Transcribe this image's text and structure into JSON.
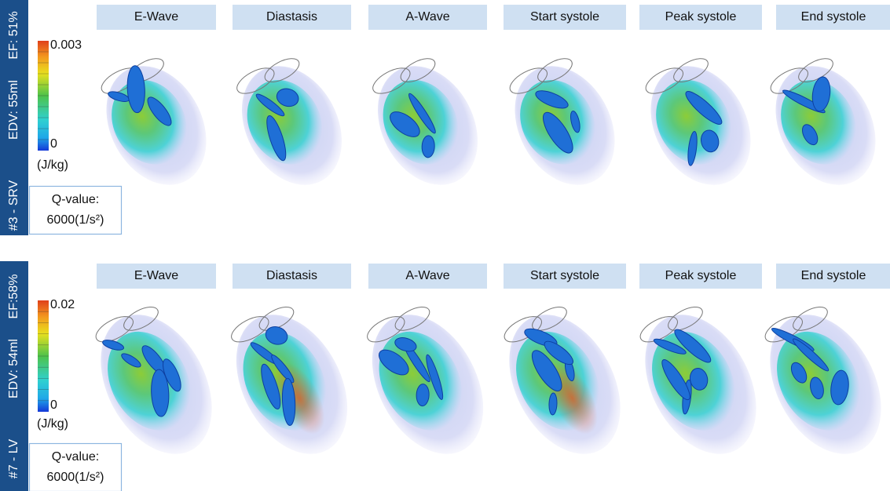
{
  "rows": [
    {
      "subject": "#3 - SRV",
      "edv": "EDV: 55ml",
      "ef": "EF: 51%",
      "colorbar": {
        "max": "0.003",
        "min": "0",
        "unit": "(J/kg)"
      },
      "q_value": {
        "label": "Q-value:",
        "value": "6000(1/s²)"
      },
      "phases": [
        "E-Wave",
        "Diastasis",
        "A-Wave",
        "Start systole",
        "Peak systole",
        "End systole"
      ]
    },
    {
      "subject": "#7 - LV",
      "edv": "EDV: 54ml",
      "ef": "EF:58%",
      "colorbar": {
        "max": "0.02",
        "min": "0",
        "unit": "(J/kg)"
      },
      "q_value": {
        "label": "Q-value:",
        "value": "6000(1/s²)"
      },
      "phases": [
        "E-Wave",
        "Diastasis",
        "A-Wave",
        "Start systole",
        "Peak systole",
        "End systole"
      ]
    }
  ]
}
